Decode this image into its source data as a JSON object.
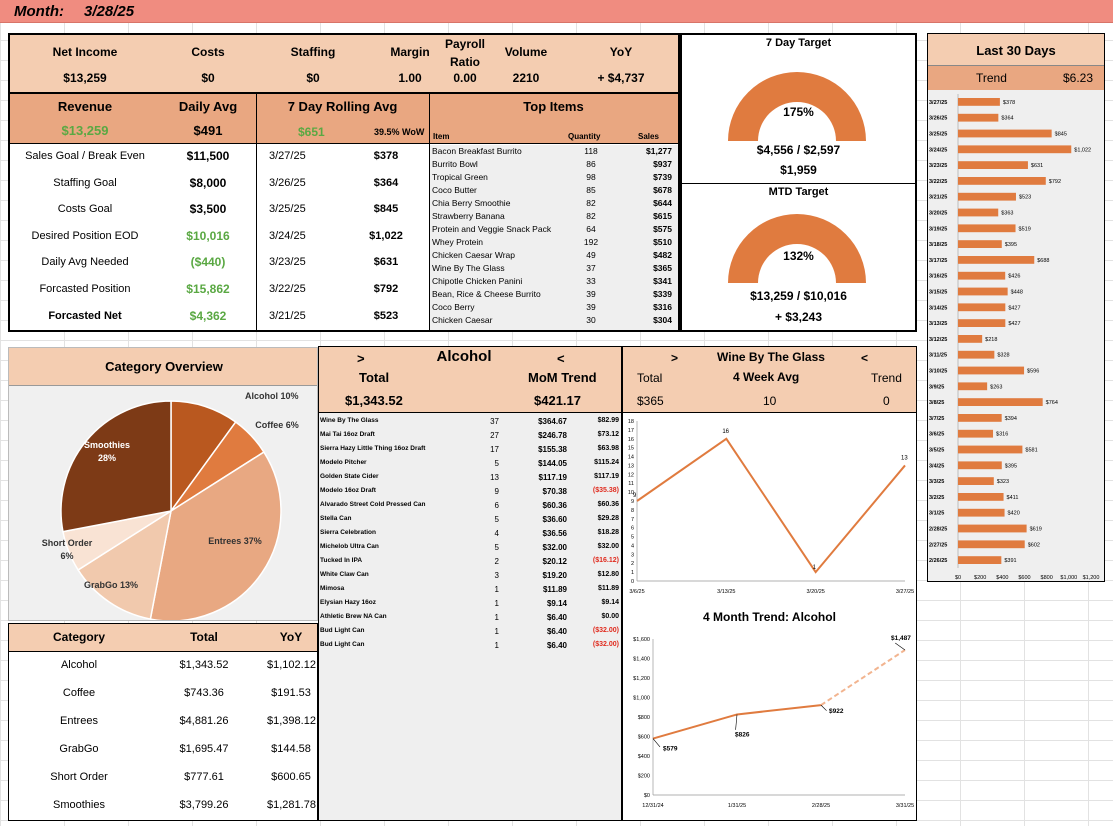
{
  "header": {
    "month_label": "Month:",
    "month_value": "3/28/25"
  },
  "kpis": [
    {
      "label": "Net Income",
      "value": "$13,259"
    },
    {
      "label": "Costs",
      "value": "$0"
    },
    {
      "label": "Staffing",
      "value": "$0"
    },
    {
      "label": "Margin",
      "value": "1.00"
    },
    {
      "label": "Payroll Ratio",
      "value": "0.00"
    },
    {
      "label": "Volume",
      "value": "2210"
    },
    {
      "label": "YoY",
      "value": "+ $4,737"
    }
  ],
  "revenue": {
    "label": "Revenue",
    "value": "$13,259"
  },
  "daily_avg": {
    "label": "Daily Avg",
    "value": "$491"
  },
  "rolling": {
    "label": "7 Day Rolling Avg",
    "value": "$651",
    "wow": "39.5% WoW",
    "rows": [
      [
        "3/27/25",
        "$378"
      ],
      [
        "3/26/25",
        "$364"
      ],
      [
        "3/25/25",
        "$845"
      ],
      [
        "3/24/25",
        "$1,022"
      ],
      [
        "3/23/25",
        "$631"
      ],
      [
        "3/22/25",
        "$792"
      ],
      [
        "3/21/25",
        "$523"
      ]
    ]
  },
  "goals": [
    {
      "label": "Sales Goal / Break Even",
      "value": "$11,500",
      "color": "#000000"
    },
    {
      "label": "Staffing Goal",
      "value": "$8,000",
      "color": "#000000"
    },
    {
      "label": "Costs Goal",
      "value": "$3,500",
      "color": "#000000"
    },
    {
      "label": "Desired Position EOD",
      "value": "$10,016",
      "color": "#5aa843"
    },
    {
      "label": "Daily Avg Needed",
      "value": "($440)",
      "color": "#5aa843"
    },
    {
      "label": "Forcasted Position",
      "value": "$15,862",
      "color": "#5aa843"
    },
    {
      "label": "Forcasted Net",
      "value": "$4,362",
      "color": "#5aa843"
    }
  ],
  "top_items": {
    "title": "Top Items",
    "headers": [
      "Item",
      "Quantity",
      "Sales"
    ],
    "rows": [
      [
        "Bacon Breakfast Burrito",
        "118",
        "$1,277"
      ],
      [
        "Burrito Bowl",
        "86",
        "$937"
      ],
      [
        "Tropical Green",
        "98",
        "$739"
      ],
      [
        "Coco Butter",
        "85",
        "$678"
      ],
      [
        "Chia Berry Smoothie",
        "82",
        "$644"
      ],
      [
        "Strawberry Banana",
        "82",
        "$615"
      ],
      [
        "Protein and Veggie Snack Pack",
        "64",
        "$575"
      ],
      [
        "Whey Protein",
        "192",
        "$510"
      ],
      [
        "Chicken Caesar Wrap",
        "49",
        "$482"
      ],
      [
        "Wine By The Glass",
        "37",
        "$365"
      ],
      [
        "Chipotle Chicken Panini",
        "33",
        "$341"
      ],
      [
        "Bean, Rice & Cheese Burrito",
        "39",
        "$339"
      ],
      [
        "Coco Berry",
        "39",
        "$316"
      ],
      [
        "Chicken Caesar",
        "30",
        "$304"
      ]
    ]
  },
  "target7": {
    "title": "7 Day Target",
    "pct": "175%",
    "fraction": 1.0,
    "line1": "$4,556 / $2,597",
    "line2": "$1,959"
  },
  "targetMTD": {
    "title": "MTD Target",
    "pct": "132%",
    "fraction": 1.0,
    "line1": "$13,259 / $10,016",
    "line2": "+ $3,243"
  },
  "last30": {
    "title": "Last 30 Days",
    "trend_label": "Trend",
    "trend_value": "$6.23",
    "chart_data": {
      "type": "bar",
      "orientation": "horizontal",
      "categories": [
        "3/27/25",
        "3/26/25",
        "3/25/25",
        "3/24/25",
        "3/23/25",
        "3/22/25",
        "3/21/25",
        "3/20/25",
        "3/19/25",
        "3/18/25",
        "3/17/25",
        "3/16/25",
        "3/15/25",
        "3/14/25",
        "3/13/25",
        "3/12/25",
        "3/11/25",
        "3/10/25",
        "3/9/25",
        "3/8/25",
        "3/7/25",
        "3/6/25",
        "3/5/25",
        "3/4/25",
        "3/3/25",
        "3/2/25",
        "3/1/25",
        "2/28/25",
        "2/27/25",
        "2/26/25"
      ],
      "values": [
        378,
        364,
        845,
        1022,
        631,
        792,
        523,
        363,
        519,
        395,
        688,
        426,
        448,
        427,
        427,
        218,
        328,
        596,
        263,
        764,
        394,
        316,
        581,
        395,
        323,
        411,
        420,
        619,
        602,
        391
      ],
      "labels": [
        "$378",
        "$364",
        "$845",
        "$1,022",
        "$631",
        "$792",
        "$523",
        "$363",
        "$519",
        "$395",
        "$688",
        "$426",
        "$448",
        "$427",
        "$427",
        "$218",
        "$328",
        "$596",
        "$263",
        "$764",
        "$394",
        "$316",
        "$581",
        "$395",
        "$323",
        "$411",
        "$420",
        "$619",
        "$602",
        "$391"
      ],
      "xticks": [
        "$0",
        "$200",
        "$400",
        "$600",
        "$800",
        "$1,000",
        "$1,200"
      ],
      "xlim": [
        0,
        1200
      ],
      "color": "#e07b3f"
    }
  },
  "category_overview": {
    "title": "Category Overview",
    "chart_data": {
      "type": "pie",
      "slices": [
        {
          "name": "Alcohol",
          "label": "Alcohol  10%",
          "value": 10,
          "color": "#b9581f"
        },
        {
          "name": "Coffee",
          "label": "Coffee  6%",
          "value": 6,
          "color": "#e07b3f"
        },
        {
          "name": "Entrees",
          "label": "Entrees  37%",
          "value": 37,
          "color": "#e8a882"
        },
        {
          "name": "GrabGo",
          "label": "GrabGo  13%",
          "value": 13,
          "color": "#f1c9ad"
        },
        {
          "name": "Short Order",
          "label": "Short Order",
          "label2": "6%",
          "value": 6,
          "color": "#f9e3d4"
        },
        {
          "name": "Smoothies",
          "label": "Smoothies",
          "label2": "28%",
          "value": 28,
          "color": "#7d3a16"
        }
      ]
    }
  },
  "category_table": {
    "headers": [
      "Category",
      "Total",
      "YoY"
    ],
    "rows": [
      [
        "Alcohol",
        "$1,343.52",
        "$1,102.12"
      ],
      [
        "Coffee",
        "$743.36",
        "$191.53"
      ],
      [
        "Entrees",
        "$4,881.26",
        "$1,398.12"
      ],
      [
        "GrabGo",
        "$1,695.47",
        "$144.58"
      ],
      [
        "Short Order",
        "$777.61",
        "$600.65"
      ],
      [
        "Smoothies",
        "$3,799.26",
        "$1,281.78"
      ]
    ]
  },
  "alcohol": {
    "prev": ">",
    "title": "Alcohol",
    "next": "<",
    "total_label": "Total",
    "trend_label": "MoM Trend",
    "total": "$1,343.52",
    "trend": "$421.17",
    "rows": [
      [
        "Wine By The Glass",
        "37",
        "$364.67",
        "$82.99",
        false
      ],
      [
        "Mai Tai 16oz Draft",
        "27",
        "$246.78",
        "$73.12",
        false
      ],
      [
        "Sierra Hazy Little Thing 16oz Draft",
        "17",
        "$155.38",
        "$63.98",
        false
      ],
      [
        "Modelo Pitcher",
        "5",
        "$144.05",
        "$115.24",
        false
      ],
      [
        "Golden State Cider",
        "13",
        "$117.19",
        "$117.19",
        false
      ],
      [
        "Modelo 16oz Draft",
        "9",
        "$70.38",
        "($35.38)",
        true
      ],
      [
        "Alvarado Street Cold Pressed Can",
        "6",
        "$60.36",
        "$60.36",
        false
      ],
      [
        "Stella Can",
        "5",
        "$36.60",
        "$29.28",
        false
      ],
      [
        "Sierra Celebration",
        "4",
        "$36.56",
        "$18.28",
        false
      ],
      [
        "Michelob Ultra Can",
        "5",
        "$32.00",
        "$32.00",
        false
      ],
      [
        "Tucked In IPA",
        "2",
        "$20.12",
        "($16.12)",
        true
      ],
      [
        "White Claw Can",
        "3",
        "$19.20",
        "$12.80",
        false
      ],
      [
        "Mimosa",
        "1",
        "$11.89",
        "$11.89",
        false
      ],
      [
        "Elysian Hazy 16oz",
        "1",
        "$9.14",
        "$9.14",
        false
      ],
      [
        "Athletic Brew NA Can",
        "1",
        "$6.40",
        "$0.00",
        false
      ],
      [
        "Bud Light Can",
        "1",
        "$6.40",
        "($32.00)",
        true
      ],
      [
        "Bud Light Can",
        "1",
        "$6.40",
        "($32.00)",
        true
      ]
    ]
  },
  "wine": {
    "prev": ">",
    "title": "Wine By The Glass",
    "next": "<",
    "labels": [
      "Total",
      "4 Week Avg",
      "Trend"
    ],
    "values": [
      "$365",
      "10",
      "0"
    ],
    "chart_data": {
      "type": "line",
      "x": [
        "3/6/25",
        "3/13/25",
        "3/20/25",
        "3/27/25"
      ],
      "y": [
        9,
        16,
        1,
        13
      ],
      "ylim": [
        0,
        18
      ],
      "yticks": [
        "0",
        "1",
        "2",
        "3",
        "4",
        "5",
        "6",
        "7",
        "8",
        "9",
        "10",
        "11",
        "12",
        "13",
        "14",
        "15",
        "16",
        "17",
        "18"
      ],
      "labels": [
        "9",
        "16",
        "1",
        "13"
      ],
      "color": "#e07b3f"
    }
  },
  "trend4": {
    "title": "4 Month Trend: Alcohol",
    "chart_data": {
      "type": "line",
      "x": [
        "12/31/24",
        "1/31/25",
        "2/28/25",
        "3/31/25"
      ],
      "y": [
        579,
        826,
        922,
        1487
      ],
      "labels": [
        "$579",
        "$826",
        "$922",
        "$1,487"
      ],
      "ylim": [
        0,
        1600
      ],
      "yticks": [
        "$0",
        "$200",
        "$400",
        "$600",
        "$800",
        "$1,000",
        "$1,200",
        "$1,400",
        "$1,600"
      ],
      "forecast_last": true,
      "color": "#e07b3f"
    }
  }
}
